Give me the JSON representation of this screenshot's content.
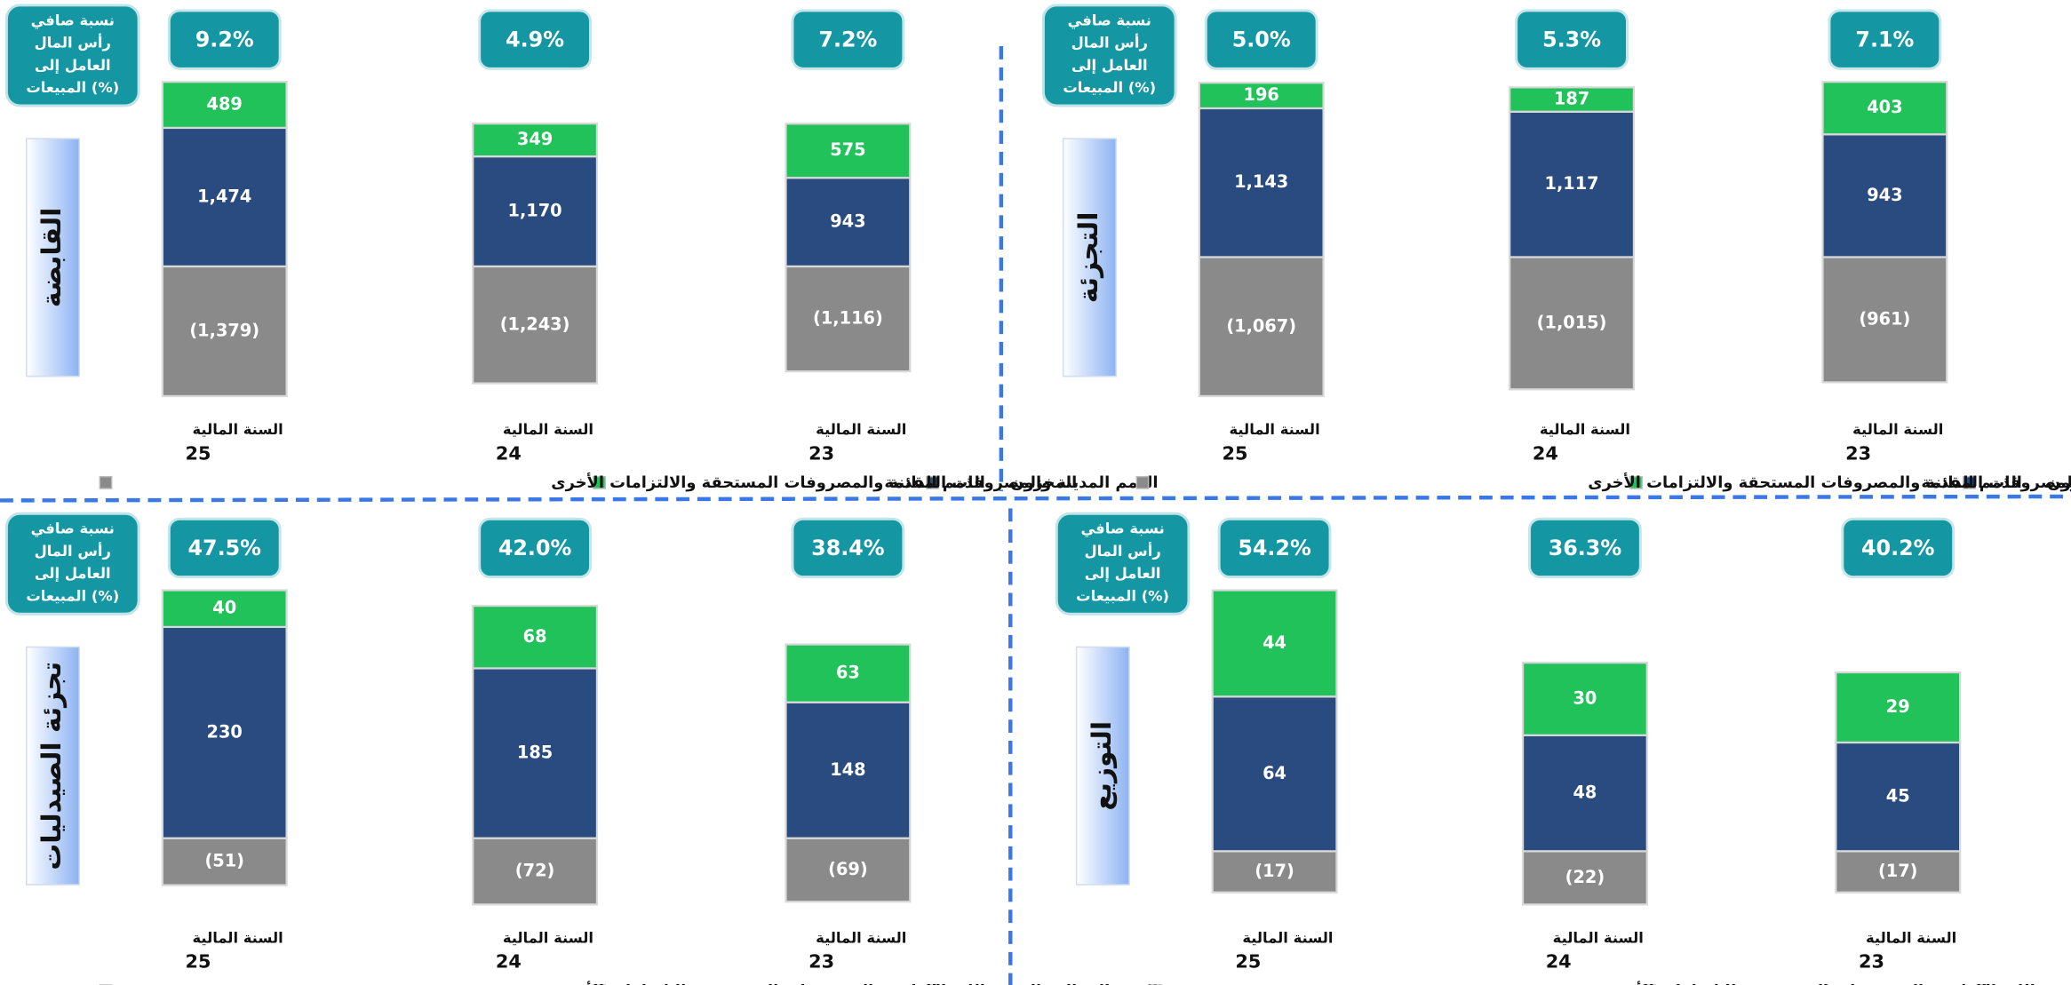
{
  "chart_data": [
    {
      "type": "bar",
      "stacked": true,
      "title": "القابضة",
      "category_label": "السنة المالية",
      "categories": [
        "25",
        "24",
        "23"
      ],
      "ratio": {
        "label": [
          "نسبة صافي",
          "رأس المال",
          "العامل إلى",
          "المبيعات (%)"
        ],
        "values": [
          9.2,
          4.9,
          7.2
        ],
        "value_labels": [
          "9.2%",
          "4.9%",
          "7.2%"
        ]
      },
      "series": [
        {
          "name": "المخزون",
          "color": "#2a4b7f",
          "values": [
            1474,
            1170,
            943
          ],
          "value_labels": [
            "1,474",
            "1,170",
            "943"
          ]
        },
        {
          "name": "الذمم المدينة والمصروفات المقدمة",
          "color": "#22c25a",
          "values": [
            489,
            349,
            575
          ]
        },
        {
          "name": "الذمم الدائنة والمصروفات المستحقة والالتزامات الأخرى",
          "color": "#8a8a8a",
          "values": [
            -1379,
            -1243,
            -1116
          ],
          "value_labels": [
            "(1,379)",
            "(1,243)",
            "(1,116)"
          ]
        }
      ]
    },
    {
      "type": "bar",
      "stacked": true,
      "title": "التجزئة",
      "category_label": "السنة المالية",
      "categories": [
        "25",
        "24",
        "23"
      ],
      "ratio": {
        "label": [
          "نسبة صافي",
          "رأس المال",
          "العامل إلى",
          "المبيعات (%)"
        ],
        "values": [
          5.0,
          5.3,
          7.1
        ],
        "value_labels": [
          "5.0%",
          "5.3%",
          "7.1%"
        ]
      },
      "series": [
        {
          "name": "المخزون",
          "color": "#2a4b7f",
          "values": [
            1143,
            1117,
            943
          ],
          "value_labels": [
            "1,143",
            "1,117",
            "943"
          ]
        },
        {
          "name": "الذمم المدينة والمصروفات المقدمة",
          "color": "#22c25a",
          "values": [
            196,
            187,
            403
          ]
        },
        {
          "name": "الذمم الدائنة والمصروفات المستحقة والالتزامات الأخرى",
          "color": "#8a8a8a",
          "values": [
            -1067,
            -1015,
            -961
          ],
          "value_labels": [
            "(1,067)",
            "(1,015)",
            "(961)"
          ]
        }
      ]
    },
    {
      "type": "bar",
      "stacked": true,
      "title": "تجزئة الصيدليات",
      "category_label": "السنة المالية",
      "categories": [
        "25",
        "24",
        "23"
      ],
      "ratio": {
        "label": [
          "نسبة صافي",
          "رأس المال",
          "العامل إلى",
          "المبيعات (%)"
        ],
        "values": [
          47.5,
          42.0,
          38.4
        ],
        "value_labels": [
          "47.5%",
          "42.0%",
          "38.4%"
        ]
      },
      "series": [
        {
          "name": "المخزون",
          "color": "#2a4b7f",
          "values": [
            230,
            185,
            148
          ]
        },
        {
          "name": "الذمم المدينة والمصروفات المقدمة",
          "color": "#22c25a",
          "values": [
            40,
            68,
            63
          ]
        },
        {
          "name": "الذمم الدائنة والمصروفات المستحقة والالتزامات الأخرى",
          "color": "#8a8a8a",
          "values": [
            -51,
            -72,
            -69
          ],
          "value_labels": [
            "(51)",
            "(72)",
            "(69)"
          ]
        }
      ]
    },
    {
      "type": "bar",
      "stacked": true,
      "title": "التوزيع",
      "category_label": "السنة المالية",
      "categories": [
        "25",
        "24",
        "23"
      ],
      "ratio": {
        "label": [
          "نسبة صافي",
          "رأس المال",
          "العامل إلى",
          "المبيعات (%)"
        ],
        "values": [
          54.2,
          36.3,
          40.2
        ],
        "value_labels": [
          "54.2%",
          "36.3%",
          "40.2%"
        ]
      },
      "series": [
        {
          "name": "المخزون",
          "color": "#2a4b7f",
          "values": [
            64,
            48,
            45
          ]
        },
        {
          "name": "الذمم المدينة والمصروفات المقدمة",
          "color": "#22c25a",
          "values": [
            44,
            30,
            29
          ]
        },
        {
          "name": "الذمم الدائنة والمصروفات المستحقة والالتزامات الأخرى",
          "color": "#8a8a8a",
          "values": [
            -17,
            -22,
            -17
          ],
          "value_labels": [
            "(17)",
            "(22)",
            "(17)"
          ]
        }
      ]
    }
  ]
}
